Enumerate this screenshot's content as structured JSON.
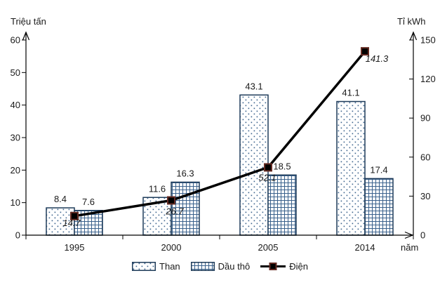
{
  "chart_data": {
    "type": "combo-bar-line",
    "categories": [
      "1995",
      "2000",
      "2005",
      "2014"
    ],
    "series": [
      {
        "name": "Than",
        "type": "bar",
        "axis": "left",
        "pattern": "dots",
        "values": [
          8.4,
          11.6,
          43.1,
          41.1
        ]
      },
      {
        "name": "Dầu thô",
        "type": "bar",
        "axis": "left",
        "pattern": "grid",
        "values": [
          7.6,
          16.3,
          18.5,
          17.4
        ]
      },
      {
        "name": "Điện",
        "type": "line",
        "axis": "right",
        "values": [
          14.7,
          26.7,
          52.1,
          141.3
        ]
      }
    ],
    "left_axis": {
      "title": "Triệu tấn",
      "min": 0,
      "max": 60,
      "ticks": [
        0,
        10,
        20,
        30,
        40,
        50,
        60
      ]
    },
    "right_axis": {
      "title": "Tỉ kWh",
      "min": 0,
      "max": 150,
      "ticks": [
        0,
        30,
        60,
        90,
        120,
        150
      ]
    },
    "x_axis": {
      "title": "năm"
    },
    "legend": {
      "position": "bottom",
      "items": [
        "Than",
        "Dầu thô",
        "Điện"
      ]
    },
    "grid": false,
    "colors": {
      "bar_border": "#1f3c5a",
      "pattern_ink": "#3a618c",
      "line": "#000000",
      "marker_fill": "#000000",
      "marker_border": "#642a22",
      "axis": "#000000",
      "text": "#1a1a1a"
    }
  }
}
